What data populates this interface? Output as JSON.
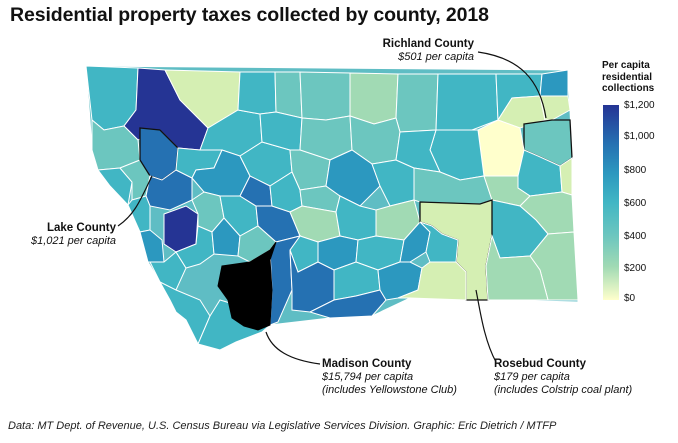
{
  "title": "Residential property taxes collected by county, 2018",
  "legend": {
    "title_lines": [
      "Per capita",
      "residential",
      "collections"
    ],
    "ticks": [
      "$1,200",
      "$1,000",
      "$800",
      "$600",
      "$400",
      "$200",
      "$0"
    ],
    "colors": [
      "#ffffcc",
      "#d5efb3",
      "#a1dab4",
      "#6cc6bf",
      "#41b6c4",
      "#2c98bf",
      "#2571b2",
      "#253494"
    ]
  },
  "callouts": {
    "richland": {
      "name": "Richland County",
      "value": "$501 per capita"
    },
    "lake": {
      "name": "Lake County",
      "value": "$1,021 per capita"
    },
    "madison": {
      "name": "Madison County",
      "value": "$15,794 per capita",
      "note": "(includes Yellowstone Club)"
    },
    "rosebud": {
      "name": "Rosebud County",
      "value": "$179 per capita",
      "note": "(includes Colstrip coal plant)"
    }
  },
  "highlight_color": "#000000",
  "footer": "Data: MT Dept. of Revenue, U.S. Census Bureau via Legislative Services Division. Graphic: Eric Dietrich / MTFP"
}
